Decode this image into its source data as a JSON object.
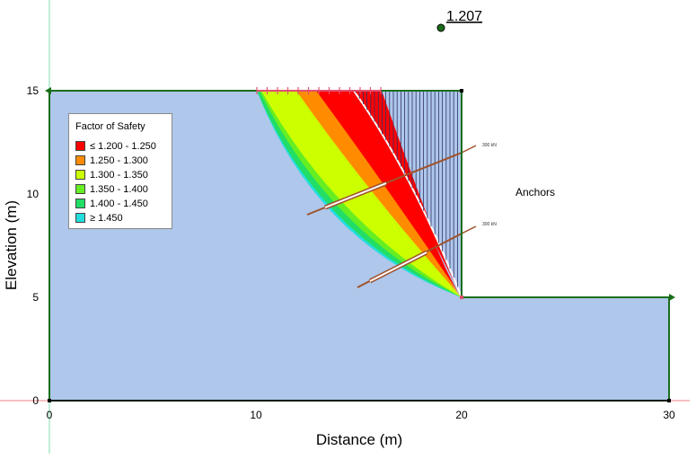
{
  "fos_label": "1.207",
  "anchors_label": "Anchors",
  "anchor_loads": [
    "300 kN",
    "300 kN"
  ],
  "x_axis": {
    "title": "Distance (m)",
    "ticks": [
      "0",
      "10",
      "20",
      "30"
    ]
  },
  "y_axis": {
    "title": "Elevation (m)",
    "ticks": [
      "0",
      "5",
      "10",
      "15"
    ]
  },
  "legend": {
    "title": "Factor of Safety",
    "items": [
      {
        "label": "≤ 1.200 - 1.250",
        "color": "#ff0000"
      },
      {
        "label": "1.250 - 1.300",
        "color": "#ff8c00"
      },
      {
        "label": "1.300 - 1.350",
        "color": "#ccff00"
      },
      {
        "label": "1.350 - 1.400",
        "color": "#66ee22"
      },
      {
        "label": "1.400 - 1.450",
        "color": "#22dd66"
      },
      {
        "label": "≥ 1.450",
        "color": "#22dddd"
      }
    ]
  },
  "colors": {
    "soil": "#aec7ea",
    "boundary": "#1a6e1a",
    "slices": "#333366",
    "anchor": "#a0522d"
  }
}
